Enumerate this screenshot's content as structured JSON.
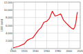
{
  "chart_data": {
    "type": "line",
    "y_label": "1000 bbl/d",
    "x": [
      1900,
      1910,
      1920,
      1925,
      1930,
      1935,
      1940,
      1945,
      1950,
      1955,
      1960,
      1965,
      1970,
      1975,
      1980,
      1985,
      1990,
      1995,
      2000,
      2005,
      2008,
      2010,
      2012,
      2014,
      2015
    ],
    "values": [
      170,
      574,
      1214,
      2100,
      2460,
      2730,
      3700,
      4700,
      5400,
      6800,
      7035,
      7800,
      9637,
      8375,
      8600,
      8970,
      7355,
      6560,
      5820,
      5180,
      5000,
      5480,
      6500,
      8700,
      9400
    ],
    "color": "#e8141b",
    "xlim": [
      1900,
      2020
    ],
    "xticks": [
      1900,
      1920,
      1940,
      1960,
      1980,
      2000,
      2020
    ],
    "ylim": [
      0,
      12000
    ],
    "yticks": [
      0,
      {
        "value": 2000,
        "label": "2,000"
      },
      {
        "value": 4000,
        "label": "4,000"
      },
      {
        "value": 6000,
        "label": "6,000"
      },
      {
        "value": 8000,
        "label": "8,000"
      },
      {
        "value": 10000,
        "label": "10,000"
      },
      {
        "value": 12000,
        "label": "12,000"
      }
    ],
    "grid": true
  }
}
